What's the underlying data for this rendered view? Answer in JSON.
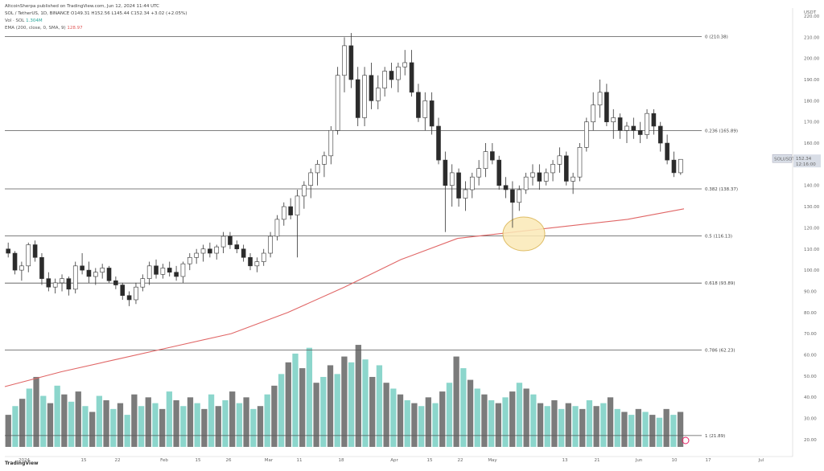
{
  "header": {
    "published": "AltcoinSherpa published on TradingView.com, Jun 12, 2024 11:44 UTC",
    "symbol_line": "SOL / TetherUS, 1D, BINANCE O149.31 H152.56 L145.44 C152.34 +3.02 (+2.05%)",
    "vol_line_label": "Vol · SOL",
    "vol_line_value": "1.304M",
    "ema_line_label": "EMA (200, close, 0, SMA, 9)",
    "ema_line_value": "128.97"
  },
  "footer": {
    "logo_text": "TradingView"
  },
  "colors": {
    "ema": "#e06666",
    "highlight_fill": "#fbe9b7",
    "highlight_stroke": "#d9b24c",
    "volume_up": "#7fd1c7",
    "volume_down": "#6d6d6d",
    "candle_down": "#2b2b2b",
    "candle_up": "#ffffff",
    "price_tag": "#d8dde6",
    "alert_icon": "#e91e63"
  },
  "chart_data": {
    "type": "candlestick",
    "title": "SOL / TetherUS, 1D, BINANCE",
    "currency_label": "USDT",
    "last_price_label": "152.34",
    "price_tag_symbol": "SOLUSDT",
    "price_tag_countdown": "12:16:00",
    "yticks": [
      220,
      210,
      200,
      190,
      180,
      170,
      160,
      150,
      140,
      130,
      120,
      110,
      100,
      90,
      80,
      70,
      60,
      50,
      40,
      30,
      20
    ],
    "ytick_labels": [
      "220.00",
      "210.00",
      "200.00",
      "190.00",
      "180.00",
      "170.00",
      "160.00",
      "150.00",
      "140.00",
      "130.00",
      "120.00",
      "110.00",
      "100.00",
      "90.00",
      "80.00",
      "70.00",
      "60.00",
      "50.00",
      "40.00",
      "30.00",
      "20.00"
    ],
    "xlabels": [
      "2024",
      "15",
      "22",
      "Feb",
      "15",
      "26",
      "Mar",
      "11",
      "18",
      "Apr",
      "15",
      "22",
      "May",
      "13",
      "21",
      "Jun",
      "10",
      "17",
      "Jul"
    ],
    "fib_levels": [
      {
        "label": "0 (210.38)",
        "price": 210.38
      },
      {
        "label": "0.236 (165.89)",
        "price": 165.89
      },
      {
        "label": "0.382 (138.37)",
        "price": 138.37
      },
      {
        "label": "0.5 (116.13)",
        "price": 116.13
      },
      {
        "label": "0.618 (93.89)",
        "price": 93.89
      },
      {
        "label": "0.786 (62.23)",
        "price": 62.23
      },
      {
        "label": "1 (21.89)",
        "price": 21.89
      }
    ],
    "ema200": {
      "name": "EMA (200, close, 0, SMA, 9)",
      "values": [
        45,
        52,
        58,
        64,
        70,
        80,
        92,
        105,
        115,
        118,
        121,
        124,
        128.97
      ]
    },
    "candles": [
      [
        110,
        113,
        106,
        108
      ],
      [
        108,
        109,
        98,
        100
      ],
      [
        100,
        104,
        95,
        102
      ],
      [
        102,
        113,
        99,
        112
      ],
      [
        112,
        114,
        104,
        106
      ],
      [
        106,
        108,
        93,
        96
      ],
      [
        96,
        99,
        90,
        92
      ],
      [
        92,
        96,
        89,
        94
      ],
      [
        94,
        98,
        90,
        96
      ],
      [
        96,
        97,
        88,
        91
      ],
      [
        91,
        104,
        89,
        102
      ],
      [
        102,
        108,
        98,
        100
      ],
      [
        100,
        104,
        94,
        97
      ],
      [
        97,
        101,
        93,
        99
      ],
      [
        99,
        103,
        96,
        101
      ],
      [
        101,
        102,
        94,
        95
      ],
      [
        95,
        97,
        91,
        93
      ],
      [
        93,
        94,
        86,
        88
      ],
      [
        88,
        90,
        83,
        86
      ],
      [
        86,
        94,
        84,
        92
      ],
      [
        92,
        98,
        90,
        96
      ],
      [
        96,
        104,
        93,
        102
      ],
      [
        102,
        105,
        96,
        98
      ],
      [
        98,
        103,
        96,
        101
      ],
      [
        101,
        104,
        97,
        99
      ],
      [
        99,
        102,
        95,
        97
      ],
      [
        97,
        104,
        94,
        103
      ],
      [
        103,
        108,
        100,
        106
      ],
      [
        106,
        110,
        103,
        108
      ],
      [
        108,
        112,
        104,
        110
      ],
      [
        110,
        113,
        106,
        108
      ],
      [
        108,
        112,
        105,
        111
      ],
      [
        111,
        118,
        108,
        116
      ],
      [
        116,
        118,
        110,
        112
      ],
      [
        112,
        114,
        108,
        110
      ],
      [
        110,
        112,
        104,
        106
      ],
      [
        106,
        108,
        100,
        102
      ],
      [
        102,
        106,
        99,
        104
      ],
      [
        104,
        110,
        102,
        108
      ],
      [
        108,
        118,
        106,
        116
      ],
      [
        116,
        126,
        114,
        124
      ],
      [
        124,
        132,
        121,
        130
      ],
      [
        130,
        134,
        124,
        126
      ],
      [
        126,
        138,
        106,
        135
      ],
      [
        135,
        142,
        129,
        140
      ],
      [
        140,
        148,
        134,
        146
      ],
      [
        146,
        152,
        140,
        150
      ],
      [
        150,
        156,
        144,
        154
      ],
      [
        154,
        168,
        150,
        166
      ],
      [
        166,
        196,
        164,
        192
      ],
      [
        192,
        210,
        184,
        206
      ],
      [
        206,
        212,
        186,
        190
      ],
      [
        190,
        196,
        168,
        172
      ],
      [
        172,
        196,
        168,
        192
      ],
      [
        192,
        198,
        176,
        180
      ],
      [
        180,
        192,
        176,
        186
      ],
      [
        186,
        196,
        182,
        194
      ],
      [
        194,
        198,
        186,
        190
      ],
      [
        190,
        198,
        184,
        196
      ],
      [
        196,
        204,
        192,
        198
      ],
      [
        198,
        204,
        182,
        184
      ],
      [
        184,
        188,
        170,
        172
      ],
      [
        172,
        184,
        166,
        180
      ],
      [
        180,
        184,
        164,
        168
      ],
      [
        168,
        172,
        150,
        152
      ],
      [
        152,
        156,
        118,
        140
      ],
      [
        140,
        150,
        130,
        146
      ],
      [
        146,
        148,
        130,
        134
      ],
      [
        134,
        142,
        128,
        138
      ],
      [
        138,
        146,
        134,
        144
      ],
      [
        144,
        152,
        140,
        148
      ],
      [
        148,
        160,
        144,
        156
      ],
      [
        156,
        160,
        150,
        152
      ],
      [
        152,
        154,
        138,
        140
      ],
      [
        140,
        144,
        134,
        138
      ],
      [
        138,
        142,
        120,
        132
      ],
      [
        132,
        140,
        128,
        138
      ],
      [
        138,
        146,
        136,
        144
      ],
      [
        144,
        150,
        140,
        146
      ],
      [
        146,
        150,
        138,
        142
      ],
      [
        142,
        148,
        140,
        146
      ],
      [
        146,
        152,
        142,
        150
      ],
      [
        150,
        158,
        146,
        154
      ],
      [
        154,
        156,
        140,
        142
      ],
      [
        142,
        146,
        136,
        144
      ],
      [
        144,
        160,
        142,
        158
      ],
      [
        158,
        172,
        156,
        170
      ],
      [
        170,
        184,
        166,
        178
      ],
      [
        178,
        190,
        172,
        184
      ],
      [
        184,
        188,
        168,
        170
      ],
      [
        170,
        176,
        162,
        172
      ],
      [
        172,
        174,
        162,
        166
      ],
      [
        166,
        170,
        160,
        168
      ],
      [
        168,
        172,
        162,
        166
      ],
      [
        166,
        170,
        160,
        164
      ],
      [
        164,
        176,
        162,
        174
      ],
      [
        174,
        176,
        164,
        168
      ],
      [
        168,
        170,
        156,
        160
      ],
      [
        160,
        164,
        150,
        152
      ],
      [
        152,
        156,
        144,
        146
      ],
      [
        146,
        152,
        145,
        152.34
      ]
    ],
    "volume_max_label": "",
    "volume": [
      [
        22,
        0
      ],
      [
        28,
        1
      ],
      [
        33,
        0
      ],
      [
        40,
        1
      ],
      [
        48,
        0
      ],
      [
        35,
        1
      ],
      [
        30,
        0
      ],
      [
        42,
        1
      ],
      [
        36,
        0
      ],
      [
        31,
        1
      ],
      [
        38,
        0
      ],
      [
        28,
        1
      ],
      [
        24,
        0
      ],
      [
        35,
        1
      ],
      [
        32,
        0
      ],
      [
        26,
        1
      ],
      [
        30,
        0
      ],
      [
        22,
        1
      ],
      [
        36,
        0
      ],
      [
        28,
        1
      ],
      [
        34,
        0
      ],
      [
        30,
        1
      ],
      [
        26,
        0
      ],
      [
        38,
        1
      ],
      [
        32,
        0
      ],
      [
        28,
        1
      ],
      [
        34,
        0
      ],
      [
        30,
        1
      ],
      [
        26,
        0
      ],
      [
        36,
        1
      ],
      [
        28,
        0
      ],
      [
        32,
        1
      ],
      [
        38,
        0
      ],
      [
        30,
        1
      ],
      [
        34,
        0
      ],
      [
        26,
        1
      ],
      [
        28,
        0
      ],
      [
        36,
        1
      ],
      [
        42,
        0
      ],
      [
        50,
        1
      ],
      [
        58,
        0
      ],
      [
        64,
        1
      ],
      [
        54,
        0
      ],
      [
        68,
        1
      ],
      [
        44,
        0
      ],
      [
        48,
        1
      ],
      [
        56,
        0
      ],
      [
        50,
        1
      ],
      [
        62,
        0
      ],
      [
        58,
        1
      ],
      [
        70,
        0
      ],
      [
        60,
        1
      ],
      [
        48,
        0
      ],
      [
        56,
        1
      ],
      [
        44,
        0
      ],
      [
        40,
        1
      ],
      [
        36,
        0
      ],
      [
        32,
        1
      ],
      [
        30,
        0
      ],
      [
        28,
        1
      ],
      [
        34,
        0
      ],
      [
        30,
        1
      ],
      [
        38,
        0
      ],
      [
        44,
        1
      ],
      [
        62,
        0
      ],
      [
        54,
        1
      ],
      [
        46,
        0
      ],
      [
        40,
        1
      ],
      [
        36,
        0
      ],
      [
        32,
        1
      ],
      [
        30,
        0
      ],
      [
        34,
        1
      ],
      [
        38,
        0
      ],
      [
        44,
        1
      ],
      [
        40,
        0
      ],
      [
        36,
        1
      ],
      [
        30,
        0
      ],
      [
        28,
        1
      ],
      [
        32,
        0
      ],
      [
        26,
        1
      ],
      [
        30,
        0
      ],
      [
        28,
        1
      ],
      [
        26,
        0
      ],
      [
        32,
        1
      ],
      [
        28,
        0
      ],
      [
        30,
        1
      ],
      [
        34,
        0
      ],
      [
        26,
        1
      ],
      [
        24,
        0
      ],
      [
        22,
        1
      ],
      [
        26,
        0
      ],
      [
        24,
        1
      ],
      [
        22,
        0
      ],
      [
        20,
        1
      ],
      [
        26,
        0
      ],
      [
        22,
        1
      ],
      [
        24,
        0
      ]
    ]
  }
}
